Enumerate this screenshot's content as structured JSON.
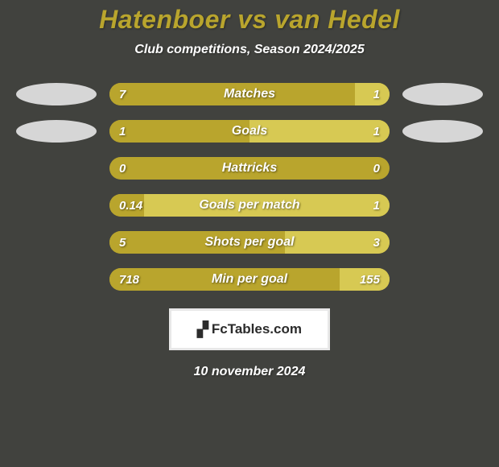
{
  "background_color": "#41423e",
  "title": {
    "text": "Hatenboer vs van Hedel",
    "color": "#b9a52d"
  },
  "subtitle": {
    "text": "Club competitions, Season 2024/2025",
    "color": "#ffffff"
  },
  "left_color": "#b9a52d",
  "right_color": "#d7c953",
  "track_color": "#b9a52d",
  "badge_color": "#d6d6d6",
  "stats": [
    {
      "label": "Matches",
      "left_val": "7",
      "right_val": "1",
      "left_pct": 87.5,
      "show_badges": true
    },
    {
      "label": "Goals",
      "left_val": "1",
      "right_val": "1",
      "left_pct": 50,
      "show_badges": true
    },
    {
      "label": "Hattricks",
      "left_val": "0",
      "right_val": "0",
      "left_pct": 100,
      "show_badges": false
    },
    {
      "label": "Goals per match",
      "left_val": "0.14",
      "right_val": "1",
      "left_pct": 12.3,
      "show_badges": false
    },
    {
      "label": "Shots per goal",
      "left_val": "5",
      "right_val": "3",
      "left_pct": 62.5,
      "show_badges": false
    },
    {
      "label": "Min per goal",
      "left_val": "718",
      "right_val": "155",
      "left_pct": 82.2,
      "show_badges": false
    }
  ],
  "logo": {
    "icon": "📊",
    "text": "FcTables.com"
  },
  "date": {
    "text": "10 november 2024",
    "color": "#ffffff"
  }
}
